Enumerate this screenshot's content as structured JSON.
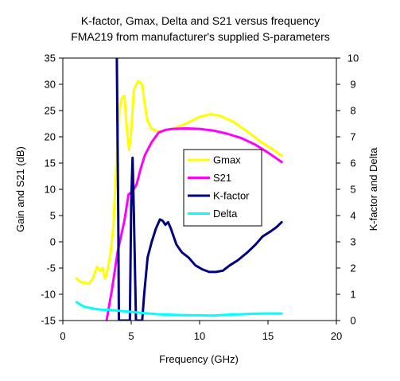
{
  "chart_data": {
    "type": "line",
    "title": "K-factor, Gmax, Delta and S21 versus frequency",
    "subtitle": "FMA219 from manufacturer's supplied S-parameters",
    "xlabel": "Frequency (GHz)",
    "ylabel": "Gain and S21 (dB)",
    "y2label": "K-factor and Delta",
    "xlim": [
      0,
      20
    ],
    "ylim": [
      -15,
      35
    ],
    "y2lim": [
      0,
      10
    ],
    "xticks": [
      "0",
      "5",
      "10",
      "15",
      "20"
    ],
    "yticks": [
      "-15",
      "-10",
      "-5",
      "0",
      "5",
      "10",
      "15",
      "20",
      "25",
      "30",
      "35"
    ],
    "y2ticks": [
      "0",
      "1",
      "2",
      "3",
      "4",
      "5",
      "6",
      "7",
      "8",
      "9",
      "10"
    ],
    "grid": false,
    "legend_position": "center-right",
    "series": [
      {
        "name": "Gmax",
        "axis": "left",
        "color": "#ffff00",
        "points": [
          [
            1.0,
            -7.0
          ],
          [
            1.3,
            -7.7
          ],
          [
            1.6,
            -7.8
          ],
          [
            1.9,
            -8.0
          ],
          [
            2.2,
            -7.0
          ],
          [
            2.5,
            -4.8
          ],
          [
            2.7,
            -5.5
          ],
          [
            2.9,
            -5.0
          ],
          [
            3.1,
            -7.0
          ],
          [
            3.3,
            -5.0
          ],
          [
            3.5,
            -2.0
          ],
          [
            3.7,
            3.0
          ],
          [
            3.9,
            14.0
          ],
          [
            4.1,
            24.5
          ],
          [
            4.3,
            27.3
          ],
          [
            4.5,
            27.8
          ],
          [
            4.7,
            21.0
          ],
          [
            4.85,
            17.5
          ],
          [
            5.0,
            21.0
          ],
          [
            5.2,
            29.0
          ],
          [
            5.5,
            30.6
          ],
          [
            5.8,
            30.0
          ],
          [
            6.0,
            26.0
          ],
          [
            6.2,
            23.0
          ],
          [
            6.5,
            21.5
          ],
          [
            7.0,
            21.0
          ],
          [
            8.0,
            21.5
          ],
          [
            9.0,
            22.5
          ],
          [
            10.0,
            23.8
          ],
          [
            10.8,
            24.3
          ],
          [
            11.5,
            24.0
          ],
          [
            12.5,
            22.8
          ],
          [
            13.5,
            21.0
          ],
          [
            14.5,
            19.0
          ],
          [
            15.3,
            17.7
          ],
          [
            16.0,
            16.4
          ]
        ]
      },
      {
        "name": "S21",
        "axis": "left",
        "color": "#ff00ff",
        "points": [
          [
            3.2,
            -15.0
          ],
          [
            3.6,
            -9.0
          ],
          [
            4.0,
            -2.0
          ],
          [
            4.5,
            4.0
          ],
          [
            4.8,
            9.0
          ],
          [
            5.1,
            9.6
          ],
          [
            5.4,
            11.0
          ],
          [
            5.7,
            14.0
          ],
          [
            6.0,
            16.5
          ],
          [
            6.5,
            19.0
          ],
          [
            7.0,
            20.8
          ],
          [
            7.5,
            21.3
          ],
          [
            8.0,
            21.5
          ],
          [
            9.0,
            21.6
          ],
          [
            10.0,
            21.5
          ],
          [
            11.0,
            21.2
          ],
          [
            12.0,
            20.6
          ],
          [
            13.0,
            19.8
          ],
          [
            14.0,
            18.6
          ],
          [
            15.0,
            17.0
          ],
          [
            16.0,
            15.2
          ]
        ]
      },
      {
        "name": "K-factor",
        "axis": "right",
        "color": "#000080",
        "points": [
          [
            3.95,
            10.0
          ],
          [
            4.05,
            4.0
          ],
          [
            4.1,
            0.0
          ],
          [
            4.9,
            0.0
          ],
          [
            5.0,
            4.5
          ],
          [
            5.1,
            6.2
          ],
          [
            5.2,
            4.0
          ],
          [
            5.35,
            0.0
          ],
          [
            5.8,
            0.0
          ],
          [
            5.95,
            1.0
          ],
          [
            6.2,
            2.4
          ],
          [
            6.5,
            3.0
          ],
          [
            6.8,
            3.5
          ],
          [
            7.1,
            3.85
          ],
          [
            7.3,
            3.8
          ],
          [
            7.5,
            3.65
          ],
          [
            7.7,
            3.75
          ],
          [
            7.9,
            3.5
          ],
          [
            8.3,
            2.9
          ],
          [
            8.7,
            2.6
          ],
          [
            9.2,
            2.4
          ],
          [
            9.7,
            2.1
          ],
          [
            10.2,
            1.95
          ],
          [
            10.7,
            1.85
          ],
          [
            11.2,
            1.85
          ],
          [
            11.7,
            1.9
          ],
          [
            12.2,
            2.1
          ],
          [
            12.8,
            2.3
          ],
          [
            13.5,
            2.6
          ],
          [
            14.1,
            2.9
          ],
          [
            14.6,
            3.2
          ],
          [
            15.2,
            3.4
          ],
          [
            15.6,
            3.55
          ],
          [
            16.0,
            3.75
          ]
        ]
      },
      {
        "name": "Delta",
        "axis": "right",
        "color": "#00ffff",
        "points": [
          [
            1.0,
            0.7
          ],
          [
            1.3,
            0.6
          ],
          [
            1.6,
            0.52
          ],
          [
            2.0,
            0.48
          ],
          [
            2.5,
            0.43
          ],
          [
            3.0,
            0.41
          ],
          [
            3.5,
            0.4
          ],
          [
            4.0,
            0.38
          ],
          [
            4.5,
            0.35
          ],
          [
            5.0,
            0.33
          ],
          [
            6.0,
            0.28
          ],
          [
            7.0,
            0.24
          ],
          [
            8.0,
            0.22
          ],
          [
            9.0,
            0.2
          ],
          [
            10.0,
            0.2
          ],
          [
            11.0,
            0.19
          ],
          [
            12.0,
            0.22
          ],
          [
            13.0,
            0.24
          ],
          [
            14.0,
            0.26
          ],
          [
            15.0,
            0.27
          ],
          [
            16.0,
            0.27
          ]
        ]
      }
    ]
  }
}
